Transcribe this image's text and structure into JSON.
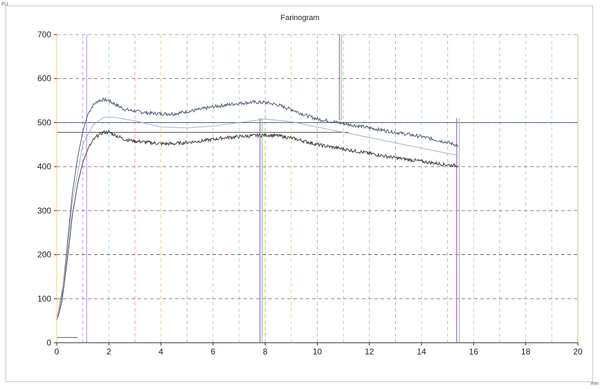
{
  "chart_data": {
    "type": "line",
    "title": "Farinogram",
    "y_unit_label": "FU",
    "x_unit_label": "min",
    "xlim": [
      0,
      20
    ],
    "ylim": [
      0,
      700
    ],
    "x_ticks": [
      0,
      2,
      4,
      6,
      8,
      10,
      12,
      14,
      16,
      18,
      20
    ],
    "y_ticks": [
      0,
      100,
      200,
      300,
      400,
      500,
      600,
      700
    ],
    "grid": true,
    "series": [
      {
        "color": "#4a5a70",
        "x": [
          0,
          0.1,
          0.2,
          0.3,
          0.45,
          0.6,
          0.8,
          1.0,
          1.2,
          1.4,
          1.6,
          1.8,
          2.0,
          2.3,
          2.6,
          3.0,
          3.5,
          4.0,
          4.5,
          5.0,
          5.5,
          6.0,
          6.5,
          7.0,
          7.5,
          8.0,
          8.5,
          9.0,
          9.5,
          10.0,
          11.0,
          12.0,
          13.0,
          14.0,
          15.0,
          15.4
        ],
        "y": [
          55,
          80,
          110,
          160,
          250,
          340,
          420,
          480,
          520,
          540,
          550,
          552,
          550,
          540,
          530,
          526,
          522,
          520,
          520,
          525,
          530,
          536,
          540,
          544,
          546,
          546,
          540,
          530,
          518,
          508,
          498,
          488,
          478,
          468,
          455,
          448
        ]
      },
      {
        "color": "#3a3a3a",
        "x": [
          0,
          0.1,
          0.2,
          0.3,
          0.45,
          0.6,
          0.8,
          1.0,
          1.2,
          1.4,
          1.6,
          1.8,
          2.0,
          2.3,
          2.6,
          3.0,
          3.5,
          4.0,
          4.5,
          5.0,
          5.5,
          6.0,
          6.5,
          7.0,
          7.5,
          8.0,
          8.5,
          9.0,
          9.5,
          10.0,
          11.0,
          12.0,
          13.0,
          14.0,
          15.0,
          15.4
        ],
        "y": [
          50,
          70,
          95,
          140,
          210,
          290,
          360,
          410,
          440,
          460,
          472,
          478,
          478,
          470,
          462,
          458,
          455,
          452,
          452,
          455,
          458,
          462,
          466,
          468,
          470,
          472,
          470,
          465,
          458,
          450,
          440,
          430,
          420,
          412,
          404,
          402
        ]
      },
      {
        "color": "#9fb0c0",
        "x": [
          0,
          0.3,
          0.6,
          1.0,
          1.4,
          1.8,
          2.2,
          2.6,
          3.0,
          4.0,
          5.0,
          6.0,
          7.0,
          8.0,
          9.0,
          10.0,
          11.0,
          12.0,
          13.0,
          14.0,
          15.0,
          15.4
        ],
        "y": [
          52,
          150,
          320,
          450,
          495,
          512,
          512,
          508,
          504,
          490,
          488,
          492,
          500,
          508,
          502,
          490,
          478,
          466,
          454,
          442,
          430,
          426
        ]
      }
    ],
    "reference_lines": [
      {
        "orientation": "horizontal",
        "y": 500,
        "x_from": 0,
        "x_to": 20,
        "color": "#4a5a70"
      },
      {
        "orientation": "horizontal",
        "y": 478,
        "x_from": 0,
        "x_to": 11.2,
        "color": "#555555"
      },
      {
        "orientation": "horizontal",
        "y": 12,
        "x_from": 0,
        "x_to": 0.8,
        "color": "#555555"
      },
      {
        "orientation": "vertical",
        "x": 1.15,
        "y_from": 0,
        "y_to": 700,
        "color": "#c9b0e0"
      },
      {
        "orientation": "vertical",
        "x": 7.8,
        "y_from": 0,
        "y_to": 510,
        "color": "#b07ad8"
      },
      {
        "orientation": "vertical",
        "x": 7.88,
        "y_from": 0,
        "y_to": 510,
        "color": "#9be07a"
      },
      {
        "orientation": "vertical",
        "x": 10.85,
        "y_from": 505,
        "y_to": 700,
        "color": "#b07ad8"
      },
      {
        "orientation": "vertical",
        "x": 10.93,
        "y_from": 505,
        "y_to": 700,
        "color": "#9be07a"
      },
      {
        "orientation": "vertical",
        "x": 15.35,
        "y_from": 0,
        "y_to": 510,
        "color": "#b07ad8"
      },
      {
        "orientation": "vertical",
        "x": 15.45,
        "y_from": 0,
        "y_to": 510,
        "color": "#9be07a"
      },
      {
        "orientation": "vertical",
        "x": 20,
        "y_from": 0,
        "y_to": 700,
        "color": "#e0d88a"
      }
    ],
    "grid_colors": [
      "#e3a0e8",
      "#a8d8f0",
      "#f0d07a",
      "#9fe09f",
      "#c0a0f0",
      "#f0a0a0"
    ]
  }
}
